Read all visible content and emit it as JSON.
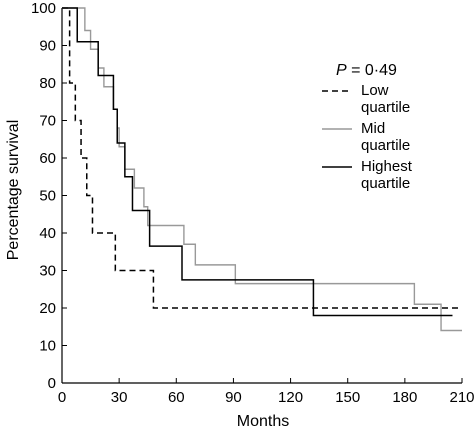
{
  "chart_data": {
    "type": "line",
    "subtype": "kaplan-meier step",
    "xlabel": "Months",
    "ylabel": "Percentage survival",
    "xlim": [
      0,
      210
    ],
    "ylim": [
      0,
      100
    ],
    "x_ticks": [
      "0",
      "30",
      "60",
      "90",
      "120",
      "150",
      "180",
      "210"
    ],
    "y_ticks": [
      "0",
      "10",
      "20",
      "30",
      "40",
      "50",
      "60",
      "70",
      "80",
      "90",
      "100"
    ],
    "annotation": {
      "italic": "P",
      "rest": " = 0·49"
    },
    "legend_position": "top-right",
    "series": [
      {
        "name": "Low quartile",
        "legend_lines": [
          "Low",
          "quartile"
        ],
        "style": "dashed",
        "color": "#000000",
        "points": [
          [
            0,
            100
          ],
          [
            4,
            100
          ],
          [
            4,
            80
          ],
          [
            7,
            80
          ],
          [
            7,
            70
          ],
          [
            10,
            70
          ],
          [
            10,
            60
          ],
          [
            13,
            60
          ],
          [
            13,
            50
          ],
          [
            16,
            50
          ],
          [
            16,
            40
          ],
          [
            28,
            40
          ],
          [
            28,
            30
          ],
          [
            48,
            30
          ],
          [
            48,
            20
          ],
          [
            210,
            20
          ]
        ]
      },
      {
        "name": "Mid quartile",
        "legend_lines": [
          "Mid",
          "quartile"
        ],
        "style": "solid",
        "color": "#999999",
        "points": [
          [
            0,
            100
          ],
          [
            12,
            100
          ],
          [
            12,
            94
          ],
          [
            15,
            94
          ],
          [
            15,
            89
          ],
          [
            19,
            89
          ],
          [
            19,
            84
          ],
          [
            22,
            84
          ],
          [
            22,
            79
          ],
          [
            27,
            79
          ],
          [
            27,
            73
          ],
          [
            29,
            73
          ],
          [
            29,
            68
          ],
          [
            30,
            68
          ],
          [
            30,
            63
          ],
          [
            33,
            63
          ],
          [
            33,
            57
          ],
          [
            38,
            57
          ],
          [
            38,
            52
          ],
          [
            43,
            52
          ],
          [
            43,
            47
          ],
          [
            45,
            47
          ],
          [
            45,
            42
          ],
          [
            64,
            42
          ],
          [
            64,
            37
          ],
          [
            70,
            37
          ],
          [
            70,
            31.5
          ],
          [
            91,
            31.5
          ],
          [
            91,
            26.5
          ],
          [
            185,
            26.5
          ],
          [
            185,
            21
          ],
          [
            199,
            21
          ],
          [
            199,
            14
          ],
          [
            210,
            14
          ]
        ]
      },
      {
        "name": "Highest quartile",
        "legend_lines": [
          "Highest",
          "quartile"
        ],
        "style": "solid",
        "color": "#000000",
        "points": [
          [
            0,
            100
          ],
          [
            8,
            100
          ],
          [
            8,
            91
          ],
          [
            19,
            91
          ],
          [
            19,
            82
          ],
          [
            27,
            82
          ],
          [
            27,
            73
          ],
          [
            29,
            73
          ],
          [
            29,
            64
          ],
          [
            33,
            64
          ],
          [
            33,
            55
          ],
          [
            37,
            55
          ],
          [
            37,
            46
          ],
          [
            46,
            46
          ],
          [
            46,
            36.5
          ],
          [
            63,
            36.5
          ],
          [
            63,
            27.5
          ],
          [
            132,
            27.5
          ],
          [
            132,
            18
          ],
          [
            205,
            18
          ]
        ]
      }
    ]
  }
}
